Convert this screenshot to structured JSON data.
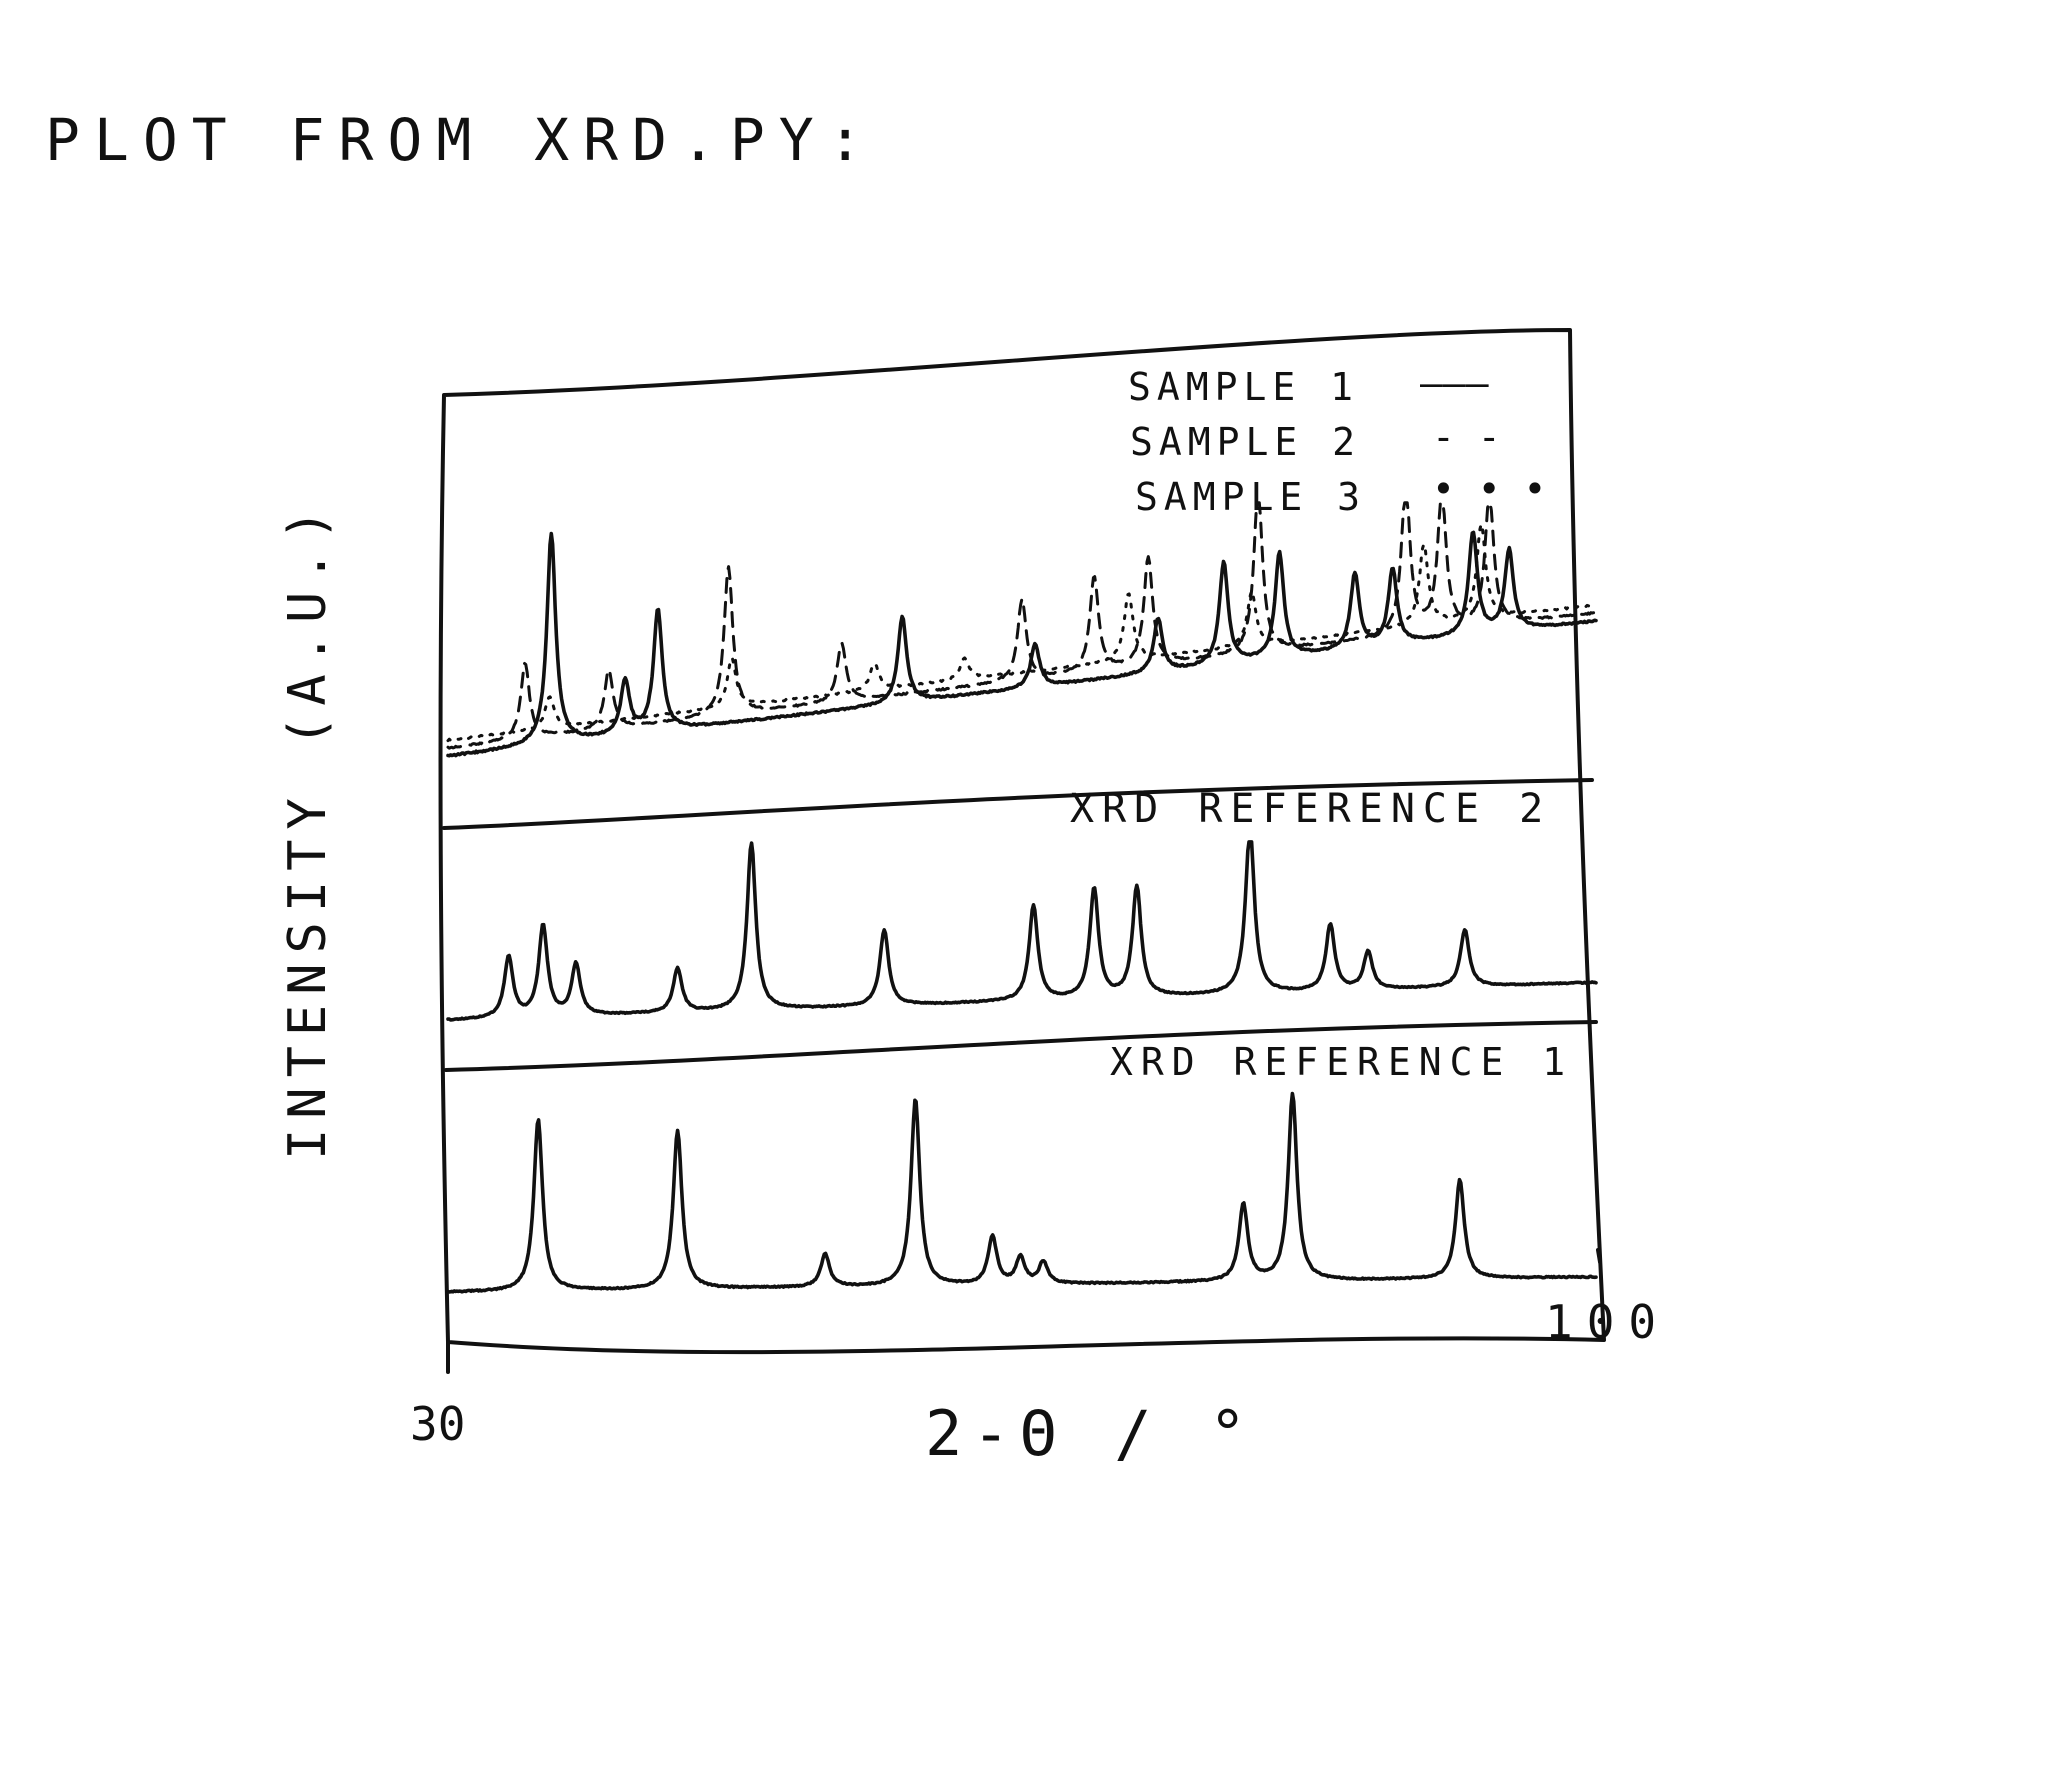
{
  "note": "PLOT FROM XRD.PY:",
  "chart_data": {
    "type": "line",
    "layout": "stacked-panels",
    "xlabel": "2-θ / °",
    "ylabel": "INTENSITY (A.U.)",
    "xlim": [
      30,
      100
    ],
    "x_ticks": [
      "30",
      "100"
    ],
    "grid": false,
    "legend_position": "top-right",
    "colors": {
      "ink": "#111111"
    },
    "panels": [
      {
        "label": "",
        "baseline": [
          0.05,
          0.55
        ],
        "legend": [
          {
            "label": "SAMPLE 1",
            "symbol": "———",
            "style": "solid"
          },
          {
            "label": "SAMPLE 2",
            "symbol": "- -",
            "style": "dashed"
          },
          {
            "label": "SAMPLE 3",
            "symbol": "• • •",
            "style": "dotted"
          }
        ],
        "series": [
          {
            "name": "SAMPLE 1",
            "style": "solid",
            "peaks": [
              [
                36.3,
                0.78
              ],
              [
                40.8,
                0.2
              ],
              [
                42.8,
                0.45
              ],
              [
                57.7,
                0.32
              ],
              [
                65.8,
                0.16
              ],
              [
                73.3,
                0.2
              ],
              [
                77.3,
                0.38
              ],
              [
                80.7,
                0.39
              ],
              [
                85.3,
                0.28
              ],
              [
                87.6,
                0.28
              ],
              [
                92.5,
                0.38
              ],
              [
                94.7,
                0.3
              ]
            ]
          },
          {
            "name": "SAMPLE 2",
            "style": "dashed",
            "peaks": [
              [
                34.7,
                0.28
              ],
              [
                39.8,
                0.22
              ],
              [
                47.1,
                0.55
              ],
              [
                54.0,
                0.22
              ],
              [
                65.0,
                0.3
              ],
              [
                69.4,
                0.35
              ],
              [
                72.7,
                0.4
              ],
              [
                79.4,
                0.6
              ],
              [
                88.4,
                0.55
              ],
              [
                90.6,
                0.5
              ],
              [
                93.5,
                0.48
              ]
            ]
          },
          {
            "name": "SAMPLE 3",
            "style": "dotted",
            "peaks": [
              [
                36.2,
                0.12
              ],
              [
                47.3,
                0.18
              ],
              [
                56.0,
                0.1
              ],
              [
                61.5,
                0.08
              ],
              [
                71.5,
                0.25
              ],
              [
                79.0,
                0.2
              ],
              [
                89.5,
                0.3
              ],
              [
                93.0,
                0.35
              ]
            ]
          }
        ]
      },
      {
        "label": "XRD REFERENCE 2",
        "baseline": [
          0.05,
          0.25
        ],
        "series": [
          {
            "name": "XRD REFERENCE 2",
            "style": "solid",
            "peaks": [
              [
                33.7,
                0.32
              ],
              [
                35.8,
                0.48
              ],
              [
                37.8,
                0.27
              ],
              [
                44.0,
                0.23
              ],
              [
                48.5,
                0.88
              ],
              [
                56.6,
                0.4
              ],
              [
                65.7,
                0.5
              ],
              [
                69.4,
                0.58
              ],
              [
                72.0,
                0.58
              ],
              [
                78.9,
                0.88
              ],
              [
                83.8,
                0.35
              ],
              [
                86.1,
                0.2
              ],
              [
                92.0,
                0.3
              ]
            ]
          }
        ]
      },
      {
        "label": "XRD REFERENCE 1",
        "baseline": [
          0.08,
          0.15
        ],
        "series": [
          {
            "name": "XRD REFERENCE 1",
            "style": "solid",
            "peaks": [
              [
                35.5,
                0.78
              ],
              [
                44.0,
                0.72
              ],
              [
                53.0,
                0.15
              ],
              [
                58.5,
                0.85
              ],
              [
                63.2,
                0.22
              ],
              [
                64.9,
                0.12
              ],
              [
                66.3,
                0.1
              ],
              [
                78.5,
                0.35
              ],
              [
                81.5,
                0.85
              ],
              [
                91.7,
                0.45
              ]
            ]
          }
        ]
      }
    ]
  }
}
